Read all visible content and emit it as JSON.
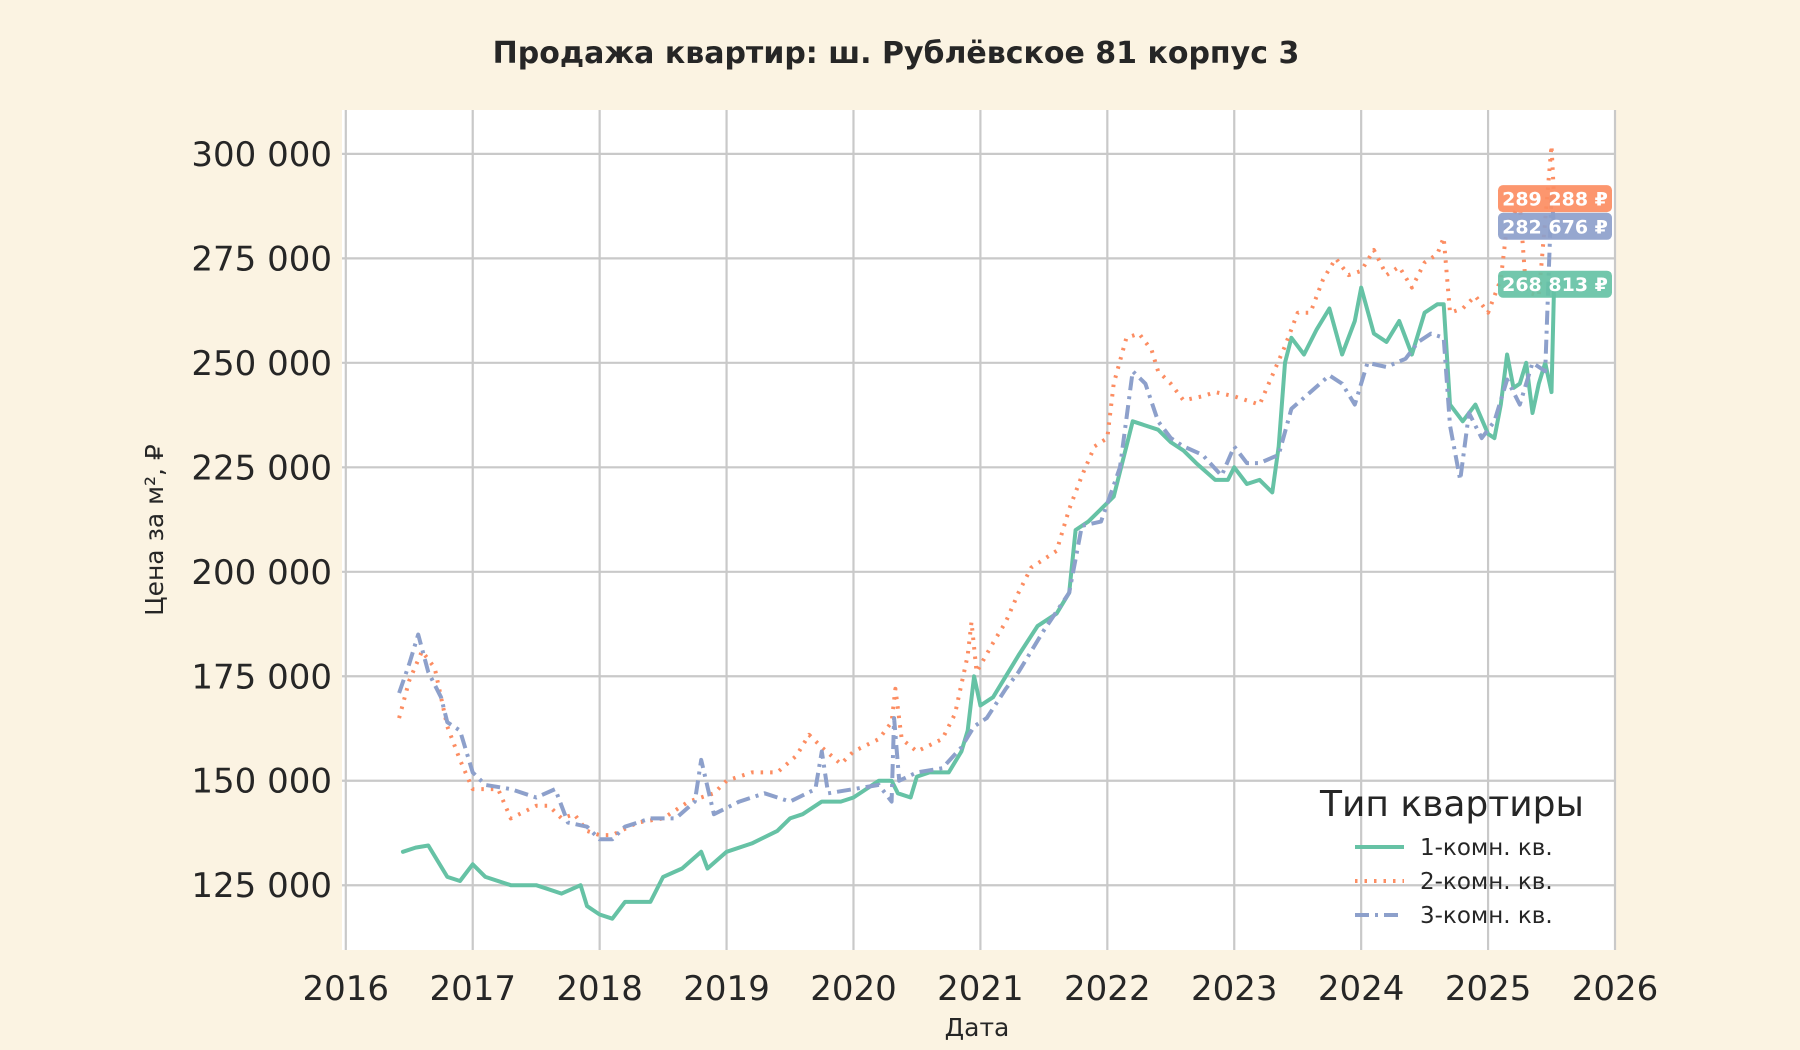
{
  "chart_data": {
    "type": "line",
    "title": "Продажа квартир: ш. Рублёвское 81 корпус 3",
    "xlabel": "Дата",
    "ylabel": "Цена за м², ₽",
    "x_ticks": [
      "2016",
      "2017",
      "2018",
      "2019",
      "2020",
      "2021",
      "2022",
      "2023",
      "2024",
      "2025",
      "2026"
    ],
    "y_ticks": [
      "125 000",
      "150 000",
      "175 000",
      "200 000",
      "225 000",
      "250 000",
      "275 000",
      "300 000"
    ],
    "xlim": [
      2015.97,
      2026.0
    ],
    "ylim": [
      109500,
      310500
    ],
    "grid": true,
    "legend": {
      "title": "Тип квартиры",
      "position": "bottom-right"
    },
    "series": [
      {
        "name": "1-комн. кв.",
        "color": "#66c2a5",
        "dash": "solid",
        "end_label": "268 813 ₽",
        "points": [
          [
            2016.45,
            133000
          ],
          [
            2016.55,
            134000
          ],
          [
            2016.65,
            134500
          ],
          [
            2016.8,
            127000
          ],
          [
            2016.9,
            126000
          ],
          [
            2017.0,
            130000
          ],
          [
            2017.1,
            127000
          ],
          [
            2017.3,
            125000
          ],
          [
            2017.5,
            125000
          ],
          [
            2017.7,
            123000
          ],
          [
            2017.85,
            125000
          ],
          [
            2017.9,
            120000
          ],
          [
            2018.0,
            118000
          ],
          [
            2018.1,
            117000
          ],
          [
            2018.2,
            121000
          ],
          [
            2018.4,
            121000
          ],
          [
            2018.5,
            127000
          ],
          [
            2018.65,
            129000
          ],
          [
            2018.8,
            133000
          ],
          [
            2018.85,
            129000
          ],
          [
            2019.0,
            133000
          ],
          [
            2019.2,
            135000
          ],
          [
            2019.4,
            138000
          ],
          [
            2019.5,
            141000
          ],
          [
            2019.6,
            142000
          ],
          [
            2019.75,
            145000
          ],
          [
            2019.9,
            145000
          ],
          [
            2020.0,
            146000
          ],
          [
            2020.2,
            150000
          ],
          [
            2020.3,
            150000
          ],
          [
            2020.35,
            147000
          ],
          [
            2020.45,
            146000
          ],
          [
            2020.5,
            151000
          ],
          [
            2020.6,
            152000
          ],
          [
            2020.75,
            152000
          ],
          [
            2020.85,
            157000
          ],
          [
            2020.9,
            162000
          ],
          [
            2020.95,
            175000
          ],
          [
            2021.0,
            168000
          ],
          [
            2021.1,
            170000
          ],
          [
            2021.2,
            175000
          ],
          [
            2021.3,
            180000
          ],
          [
            2021.45,
            187000
          ],
          [
            2021.6,
            190000
          ],
          [
            2021.7,
            195000
          ],
          [
            2021.75,
            210000
          ],
          [
            2021.85,
            212000
          ],
          [
            2021.95,
            215000
          ],
          [
            2022.05,
            218000
          ],
          [
            2022.15,
            230000
          ],
          [
            2022.2,
            236000
          ],
          [
            2022.3,
            235000
          ],
          [
            2022.4,
            234000
          ],
          [
            2022.5,
            231000
          ],
          [
            2022.6,
            229000
          ],
          [
            2022.7,
            226000
          ],
          [
            2022.85,
            222000
          ],
          [
            2022.95,
            222000
          ],
          [
            2023.0,
            225000
          ],
          [
            2023.1,
            221000
          ],
          [
            2023.2,
            222000
          ],
          [
            2023.3,
            219000
          ],
          [
            2023.35,
            230000
          ],
          [
            2023.4,
            250000
          ],
          [
            2023.45,
            256000
          ],
          [
            2023.55,
            252000
          ],
          [
            2023.65,
            258000
          ],
          [
            2023.75,
            263000
          ],
          [
            2023.85,
            252000
          ],
          [
            2023.95,
            260000
          ],
          [
            2024.0,
            268000
          ],
          [
            2024.1,
            257000
          ],
          [
            2024.2,
            255000
          ],
          [
            2024.3,
            260000
          ],
          [
            2024.4,
            252000
          ],
          [
            2024.5,
            262000
          ],
          [
            2024.6,
            264000
          ],
          [
            2024.65,
            264000
          ],
          [
            2024.7,
            240000
          ],
          [
            2024.8,
            236000
          ],
          [
            2024.9,
            240000
          ],
          [
            2025.0,
            233000
          ],
          [
            2025.05,
            232000
          ],
          [
            2025.1,
            240000
          ],
          [
            2025.15,
            252000
          ],
          [
            2025.2,
            244000
          ],
          [
            2025.25,
            245000
          ],
          [
            2025.3,
            250000
          ],
          [
            2025.35,
            238000
          ],
          [
            2025.4,
            245000
          ],
          [
            2025.45,
            250000
          ],
          [
            2025.5,
            243000
          ],
          [
            2025.52,
            268813
          ]
        ]
      },
      {
        "name": "2-комн. кв.",
        "color": "#fc8d62",
        "dash": "dotted",
        "end_label": "289 288 ₽",
        "points": [
          [
            2016.42,
            165000
          ],
          [
            2016.5,
            174000
          ],
          [
            2016.6,
            181000
          ],
          [
            2016.7,
            177000
          ],
          [
            2016.8,
            163000
          ],
          [
            2016.9,
            155000
          ],
          [
            2017.0,
            148000
          ],
          [
            2017.2,
            148000
          ],
          [
            2017.3,
            141000
          ],
          [
            2017.5,
            144000
          ],
          [
            2017.6,
            144000
          ],
          [
            2017.7,
            141000
          ],
          [
            2017.8,
            142000
          ],
          [
            2017.9,
            138000
          ],
          [
            2018.0,
            137000
          ],
          [
            2018.1,
            137000
          ],
          [
            2018.3,
            140000
          ],
          [
            2018.5,
            141000
          ],
          [
            2018.7,
            145000
          ],
          [
            2018.9,
            147000
          ],
          [
            2019.0,
            150000
          ],
          [
            2019.2,
            152000
          ],
          [
            2019.4,
            152000
          ],
          [
            2019.55,
            156000
          ],
          [
            2019.65,
            161000
          ],
          [
            2019.75,
            158000
          ],
          [
            2019.9,
            154000
          ],
          [
            2020.0,
            157000
          ],
          [
            2020.2,
            160000
          ],
          [
            2020.3,
            164000
          ],
          [
            2020.33,
            172000
          ],
          [
            2020.38,
            160000
          ],
          [
            2020.5,
            157000
          ],
          [
            2020.7,
            160000
          ],
          [
            2020.8,
            166000
          ],
          [
            2020.9,
            180000
          ],
          [
            2020.93,
            188000
          ],
          [
            2020.97,
            176000
          ],
          [
            2021.1,
            183000
          ],
          [
            2021.2,
            188000
          ],
          [
            2021.3,
            195000
          ],
          [
            2021.4,
            201000
          ],
          [
            2021.5,
            203000
          ],
          [
            2021.6,
            205000
          ],
          [
            2021.7,
            215000
          ],
          [
            2021.8,
            223000
          ],
          [
            2021.9,
            230000
          ],
          [
            2022.0,
            232000
          ],
          [
            2022.05,
            245000
          ],
          [
            2022.15,
            256000
          ],
          [
            2022.25,
            257000
          ],
          [
            2022.35,
            253000
          ],
          [
            2022.4,
            248000
          ],
          [
            2022.5,
            245000
          ],
          [
            2022.6,
            241000
          ],
          [
            2022.75,
            242000
          ],
          [
            2022.85,
            243000
          ],
          [
            2023.0,
            242000
          ],
          [
            2023.2,
            240000
          ],
          [
            2023.3,
            247000
          ],
          [
            2023.4,
            254000
          ],
          [
            2023.5,
            262000
          ],
          [
            2023.6,
            262000
          ],
          [
            2023.7,
            270000
          ],
          [
            2023.8,
            275000
          ],
          [
            2023.9,
            271000
          ],
          [
            2024.0,
            272000
          ],
          [
            2024.1,
            277000
          ],
          [
            2024.2,
            271000
          ],
          [
            2024.3,
            273000
          ],
          [
            2024.4,
            268000
          ],
          [
            2024.5,
            274000
          ],
          [
            2024.6,
            276000
          ],
          [
            2024.65,
            280000
          ],
          [
            2024.7,
            262000
          ],
          [
            2024.8,
            263000
          ],
          [
            2024.9,
            266000
          ],
          [
            2025.0,
            262000
          ],
          [
            2025.1,
            270000
          ],
          [
            2025.15,
            283000
          ],
          [
            2025.25,
            288000
          ],
          [
            2025.3,
            267000
          ],
          [
            2025.4,
            266000
          ],
          [
            2025.5,
            302000
          ],
          [
            2025.52,
            289288
          ]
        ]
      },
      {
        "name": "3-комн. кв.",
        "color": "#8da0cb",
        "dash": "dashdot",
        "end_label": "282 676 ₽",
        "points": [
          [
            2016.42,
            171000
          ],
          [
            2016.5,
            178000
          ],
          [
            2016.57,
            185000
          ],
          [
            2016.65,
            176000
          ],
          [
            2016.75,
            170000
          ],
          [
            2016.8,
            164000
          ],
          [
            2016.9,
            162000
          ],
          [
            2017.0,
            152000
          ],
          [
            2017.1,
            149000
          ],
          [
            2017.3,
            148000
          ],
          [
            2017.5,
            146000
          ],
          [
            2017.65,
            148000
          ],
          [
            2017.75,
            140000
          ],
          [
            2017.9,
            139000
          ],
          [
            2018.0,
            136000
          ],
          [
            2018.1,
            136000
          ],
          [
            2018.2,
            139000
          ],
          [
            2018.4,
            141000
          ],
          [
            2018.6,
            141000
          ],
          [
            2018.75,
            145000
          ],
          [
            2018.8,
            155000
          ],
          [
            2018.9,
            142000
          ],
          [
            2019.1,
            145000
          ],
          [
            2019.3,
            147000
          ],
          [
            2019.5,
            145000
          ],
          [
            2019.7,
            148000
          ],
          [
            2019.75,
            157000
          ],
          [
            2019.8,
            147000
          ],
          [
            2020.0,
            148000
          ],
          [
            2020.2,
            149000
          ],
          [
            2020.3,
            145000
          ],
          [
            2020.32,
            165000
          ],
          [
            2020.36,
            150000
          ],
          [
            2020.5,
            152000
          ],
          [
            2020.7,
            153000
          ],
          [
            2020.85,
            158000
          ],
          [
            2020.95,
            163000
          ],
          [
            2021.05,
            165000
          ],
          [
            2021.2,
            172000
          ],
          [
            2021.3,
            176000
          ],
          [
            2021.5,
            186000
          ],
          [
            2021.7,
            195000
          ],
          [
            2021.8,
            211000
          ],
          [
            2021.95,
            212000
          ],
          [
            2022.1,
            225000
          ],
          [
            2022.2,
            248000
          ],
          [
            2022.3,
            245000
          ],
          [
            2022.4,
            236000
          ],
          [
            2022.5,
            232000
          ],
          [
            2022.6,
            230000
          ],
          [
            2022.75,
            228000
          ],
          [
            2022.9,
            223000
          ],
          [
            2023.0,
            230000
          ],
          [
            2023.1,
            226000
          ],
          [
            2023.2,
            226000
          ],
          [
            2023.35,
            228000
          ],
          [
            2023.45,
            239000
          ],
          [
            2023.6,
            243000
          ],
          [
            2023.75,
            247000
          ],
          [
            2023.85,
            245000
          ],
          [
            2023.95,
            240000
          ],
          [
            2024.05,
            250000
          ],
          [
            2024.2,
            249000
          ],
          [
            2024.35,
            251000
          ],
          [
            2024.45,
            255000
          ],
          [
            2024.55,
            257000
          ],
          [
            2024.65,
            256000
          ],
          [
            2024.7,
            235000
          ],
          [
            2024.78,
            222000
          ],
          [
            2024.85,
            238000
          ],
          [
            2024.95,
            232000
          ],
          [
            2025.05,
            236000
          ],
          [
            2025.15,
            246000
          ],
          [
            2025.25,
            240000
          ],
          [
            2025.35,
            250000
          ],
          [
            2025.45,
            248000
          ],
          [
            2025.5,
            290000
          ],
          [
            2025.52,
            282676
          ]
        ]
      }
    ]
  }
}
